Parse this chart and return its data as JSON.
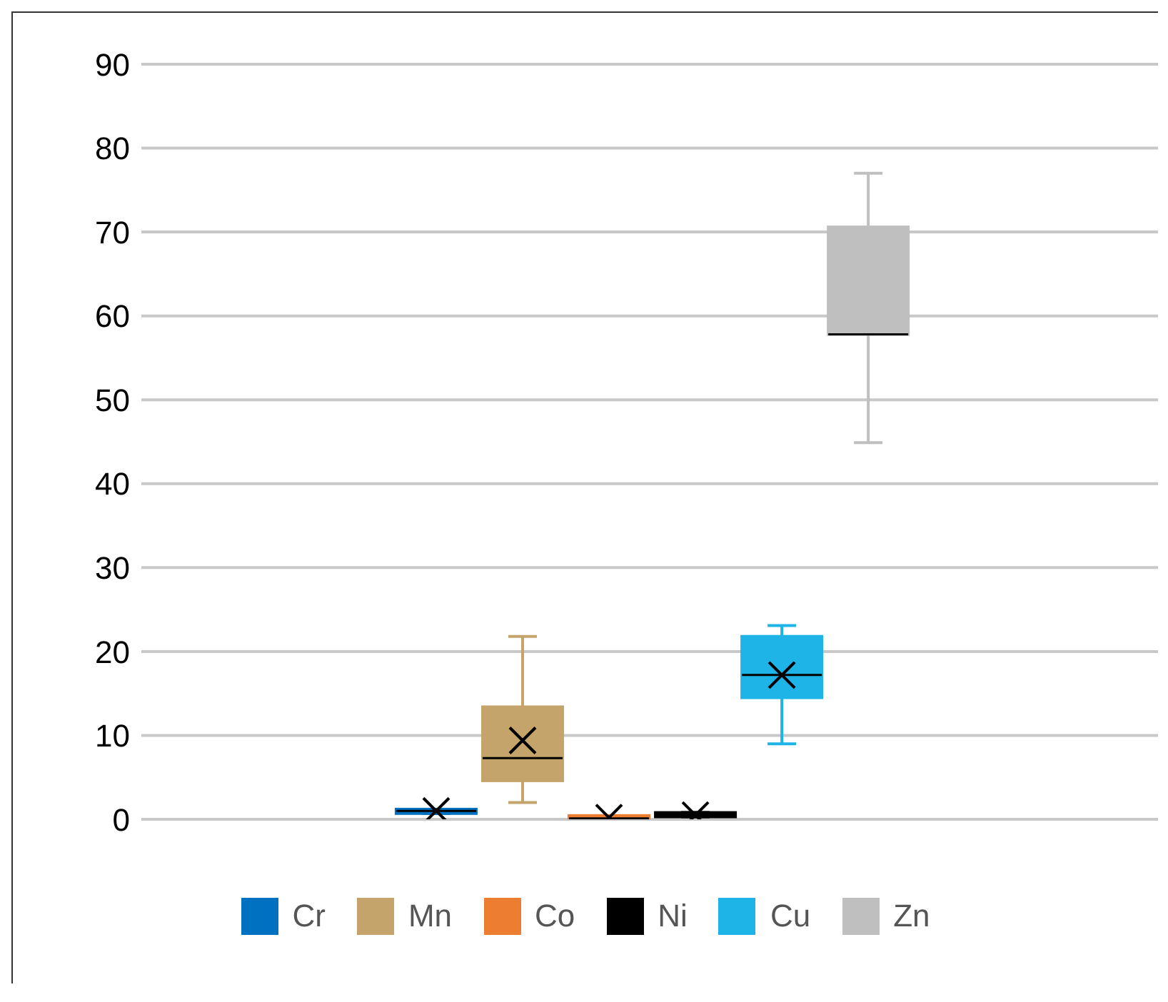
{
  "chart_data": {
    "type": "box",
    "categories": [
      null
    ],
    "series": [
      {
        "name": "Cr",
        "color": "#0070c0",
        "boxes": [
          {
            "low": 0.7,
            "q1": 0.7,
            "median": 1.0,
            "q3": 1.2,
            "high": 1.2,
            "mean": 1.0
          }
        ]
      },
      {
        "name": "Mn",
        "color": "#c4a46a",
        "boxes": [
          {
            "low": 2.0,
            "q1": 4.6,
            "median": 7.3,
            "q3": 13.4,
            "high": 21.8,
            "mean": 9.4
          }
        ]
      },
      {
        "name": "Co",
        "color": "#ed7d31",
        "boxes": [
          {
            "low": 0.1,
            "q1": 0.1,
            "median": 0.1,
            "q3": 0.1,
            "high": 0.1,
            "mean": 0.2
          }
        ]
      },
      {
        "name": "Ni",
        "color": "#000000",
        "boxes": [
          {
            "low": 0.3,
            "q1": 0.3,
            "median": 0.5,
            "q3": 0.8,
            "high": 0.8,
            "mean": 0.5
          }
        ]
      },
      {
        "name": "Cu",
        "color": "#1fb4e8",
        "boxes": [
          {
            "low": 9.0,
            "q1": 14.5,
            "median": 17.2,
            "q3": 21.8,
            "high": 23.1,
            "mean": 17.2
          }
        ]
      },
      {
        "name": "Zn",
        "color": "#bfbfbf",
        "boxes": [
          {
            "low": 44.9,
            "q1": 57.8,
            "median": 57.8,
            "q3": 70.6,
            "high": 77.0
          }
        ]
      }
    ],
    "ylim": [
      0,
      90
    ],
    "yticks": [
      0,
      10,
      20,
      30,
      40,
      50,
      60,
      70,
      80,
      90
    ],
    "grid": "y",
    "legend": "bottom"
  }
}
